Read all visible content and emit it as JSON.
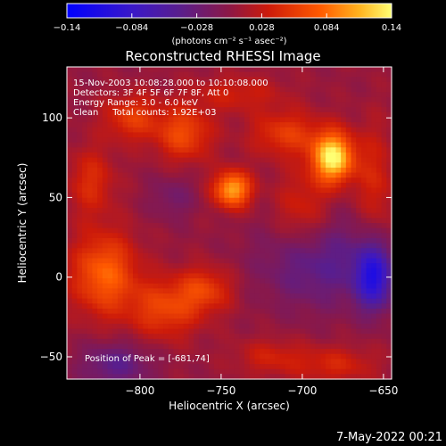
{
  "chart_data": {
    "type": "heatmap",
    "title": "Reconstructed RHESSI Image",
    "xlabel": "Heliocentric X (arcsec)",
    "ylabel": "Heliocentric Y (arcsec)",
    "xlim": [
      -845,
      -645
    ],
    "ylim": [
      -64,
      132
    ],
    "xticks": [
      {
        "v": -800,
        "label": "−800"
      },
      {
        "v": -750,
        "label": "−750"
      },
      {
        "v": -700,
        "label": "−700"
      },
      {
        "v": -650,
        "label": "−650"
      }
    ],
    "yticks": [
      {
        "v": -50,
        "label": "−50"
      },
      {
        "v": 0,
        "label": "0"
      },
      {
        "v": 50,
        "label": "50"
      },
      {
        "v": 100,
        "label": "100"
      }
    ],
    "colorbar": {
      "range": [
        -0.14,
        0.14
      ],
      "ticks": [
        {
          "v": -0.14,
          "label": "−0.14"
        },
        {
          "v": -0.084,
          "label": "−0.084"
        },
        {
          "v": -0.028,
          "label": "−0.028"
        },
        {
          "v": 0.028,
          "label": "0.028"
        },
        {
          "v": 0.084,
          "label": "0.084"
        },
        {
          "v": 0.14,
          "label": "0.14"
        }
      ],
      "units": "(photons cm⁻² s⁻¹ asec⁻²)"
    },
    "peak": {
      "x": -681,
      "y": 74,
      "value": 0.14
    },
    "annotations": [
      "15-Nov-2003 10:08:28.000 to 10:10:08.000",
      "Detectors: 3F 4F 5F 6F 7F 8F, Att 0",
      "Energy Range: 3.0 - 6.0 keV",
      "Clean     Total counts: 1.92E+03"
    ],
    "peak_label": "Position of Peak = [-681,74]",
    "sources": [
      {
        "x": -681,
        "y": 75,
        "amp": 0.135,
        "sx": 9,
        "sy": 11
      },
      {
        "x": -743,
        "y": 55,
        "amp": 0.105,
        "sx": 8,
        "sy": 8
      },
      {
        "x": -822,
        "y": 2,
        "amp": 0.075,
        "sx": 14,
        "sy": 18
      },
      {
        "x": -773,
        "y": 90,
        "amp": 0.06,
        "sx": 12,
        "sy": 12
      },
      {
        "x": -805,
        "y": 100,
        "amp": 0.05,
        "sx": 12,
        "sy": 10
      },
      {
        "x": -785,
        "y": -20,
        "amp": 0.055,
        "sx": 15,
        "sy": 13
      },
      {
        "x": -760,
        "y": -8,
        "amp": 0.05,
        "sx": 12,
        "sy": 10
      },
      {
        "x": -710,
        "y": 90,
        "amp": 0.05,
        "sx": 15,
        "sy": 10
      },
      {
        "x": -700,
        "y": 40,
        "amp": 0.04,
        "sx": 12,
        "sy": 18
      },
      {
        "x": -655,
        "y": 60,
        "amp": 0.035,
        "sx": 8,
        "sy": 25
      },
      {
        "x": -740,
        "y": 115,
        "amp": 0.03,
        "sx": 20,
        "sy": 8
      },
      {
        "x": -680,
        "y": -55,
        "amp": 0.035,
        "sx": 18,
        "sy": 8
      },
      {
        "x": -720,
        "y": -50,
        "amp": 0.03,
        "sx": 15,
        "sy": 8
      },
      {
        "x": -830,
        "y": 60,
        "amp": 0.04,
        "sx": 10,
        "sy": 15
      }
    ],
    "sinks": [
      {
        "x": -656,
        "y": 0,
        "amp": 0.1,
        "sx": 8,
        "sy": 14
      },
      {
        "x": -690,
        "y": 10,
        "amp": 0.05,
        "sx": 25,
        "sy": 20
      },
      {
        "x": -815,
        "y": -55,
        "amp": 0.045,
        "sx": 15,
        "sy": 10
      },
      {
        "x": -780,
        "y": 50,
        "amp": 0.025,
        "sx": 10,
        "sy": 10
      }
    ]
  },
  "footer": {
    "date": "7-May-2022 00:21"
  }
}
